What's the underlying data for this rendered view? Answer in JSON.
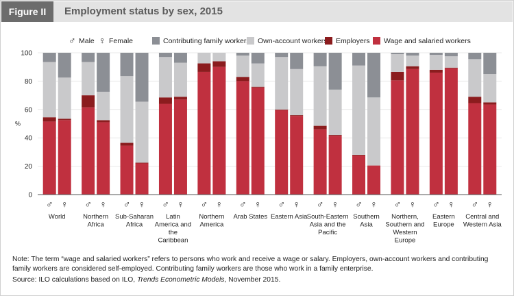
{
  "header": {
    "figure_label": "Figure II",
    "title": "Employment status by sex, 2015"
  },
  "chart_data": {
    "type": "bar",
    "stacked": true,
    "ylabel": "%",
    "ylim": [
      0,
      100
    ],
    "yticks": [
      0,
      20,
      40,
      60,
      80,
      100
    ],
    "sex_legend": {
      "male_symbol": "♂",
      "male_label": "Male",
      "female_symbol": "♀",
      "female_label": "Female"
    },
    "series": [
      {
        "name": "Wage and salaried workers",
        "color": "#c0303f"
      },
      {
        "name": "Employers",
        "color": "#8b1c1e"
      },
      {
        "name": "Own-account workers",
        "color": "#c9c9cb"
      },
      {
        "name": "Contributing family workers",
        "color": "#8c8f95"
      }
    ],
    "legend_order": [
      "Contributing family workers",
      "Own-account workers",
      "Employers",
      "Wage and salaried workers"
    ],
    "categories": [
      {
        "label": "World",
        "male": [
          51.5,
          3,
          39,
          6.5
        ],
        "female": [
          52.5,
          1,
          29,
          17.5
        ]
      },
      {
        "label": "Northern Africa",
        "male": [
          61.5,
          8.5,
          23.5,
          6.5
        ],
        "female": [
          51,
          1.5,
          20,
          27.5
        ]
      },
      {
        "label": "Sub-Saharan Africa",
        "male": [
          34.5,
          2,
          47,
          16.5
        ],
        "female": [
          22,
          0.5,
          43,
          34.5
        ]
      },
      {
        "label": "Latin America and the Caribbean",
        "male": [
          64,
          4.5,
          28.5,
          3
        ],
        "female": [
          67,
          2,
          24,
          7
        ]
      },
      {
        "label": "Northern America",
        "male": [
          86.5,
          6,
          7.5,
          0
        ],
        "female": [
          90,
          4,
          6,
          0
        ]
      },
      {
        "label": "Arab States",
        "male": [
          80,
          3,
          15,
          2
        ],
        "female": [
          75.5,
          0.5,
          16.5,
          7.5
        ]
      },
      {
        "label": "Eastern Asia",
        "male": [
          59.5,
          0.5,
          37,
          3
        ],
        "female": [
          55.5,
          0.5,
          32.5,
          11.5
        ]
      },
      {
        "label": "South-Eastern Asia and the Pacific",
        "male": [
          46,
          2.5,
          42,
          9.5
        ],
        "female": [
          41.5,
          0.5,
          32,
          26
        ]
      },
      {
        "label": "Southern Asia",
        "male": [
          27.5,
          0.5,
          63,
          9
        ],
        "female": [
          20.5,
          0,
          48,
          31.5
        ]
      },
      {
        "label": "Northern, Southern and Western Europe",
        "male": [
          80.5,
          6,
          12.5,
          1
        ],
        "female": [
          88.5,
          2,
          7.5,
          2
        ]
      },
      {
        "label": "Eastern Europe",
        "male": [
          86,
          2,
          10.5,
          1.5
        ],
        "female": [
          89,
          0.5,
          8,
          2.5
        ]
      },
      {
        "label": "Central and Western Asia",
        "male": [
          64.5,
          4.5,
          26.5,
          4.5
        ],
        "female": [
          63.5,
          1.5,
          20,
          15
        ]
      }
    ]
  },
  "footer": {
    "note": "Note: The term “wage and salaried workers” refers to persons who work and receive a wage or salary. Employers, own-account workers and contributing family workers are considered self-employed. Contributing family workers are those who work in a family enterprise.",
    "source_prefix": "Source: ILO calculations based on ILO, ",
    "source_title": "Trends Econometric Models",
    "source_suffix": ", November 2015."
  }
}
